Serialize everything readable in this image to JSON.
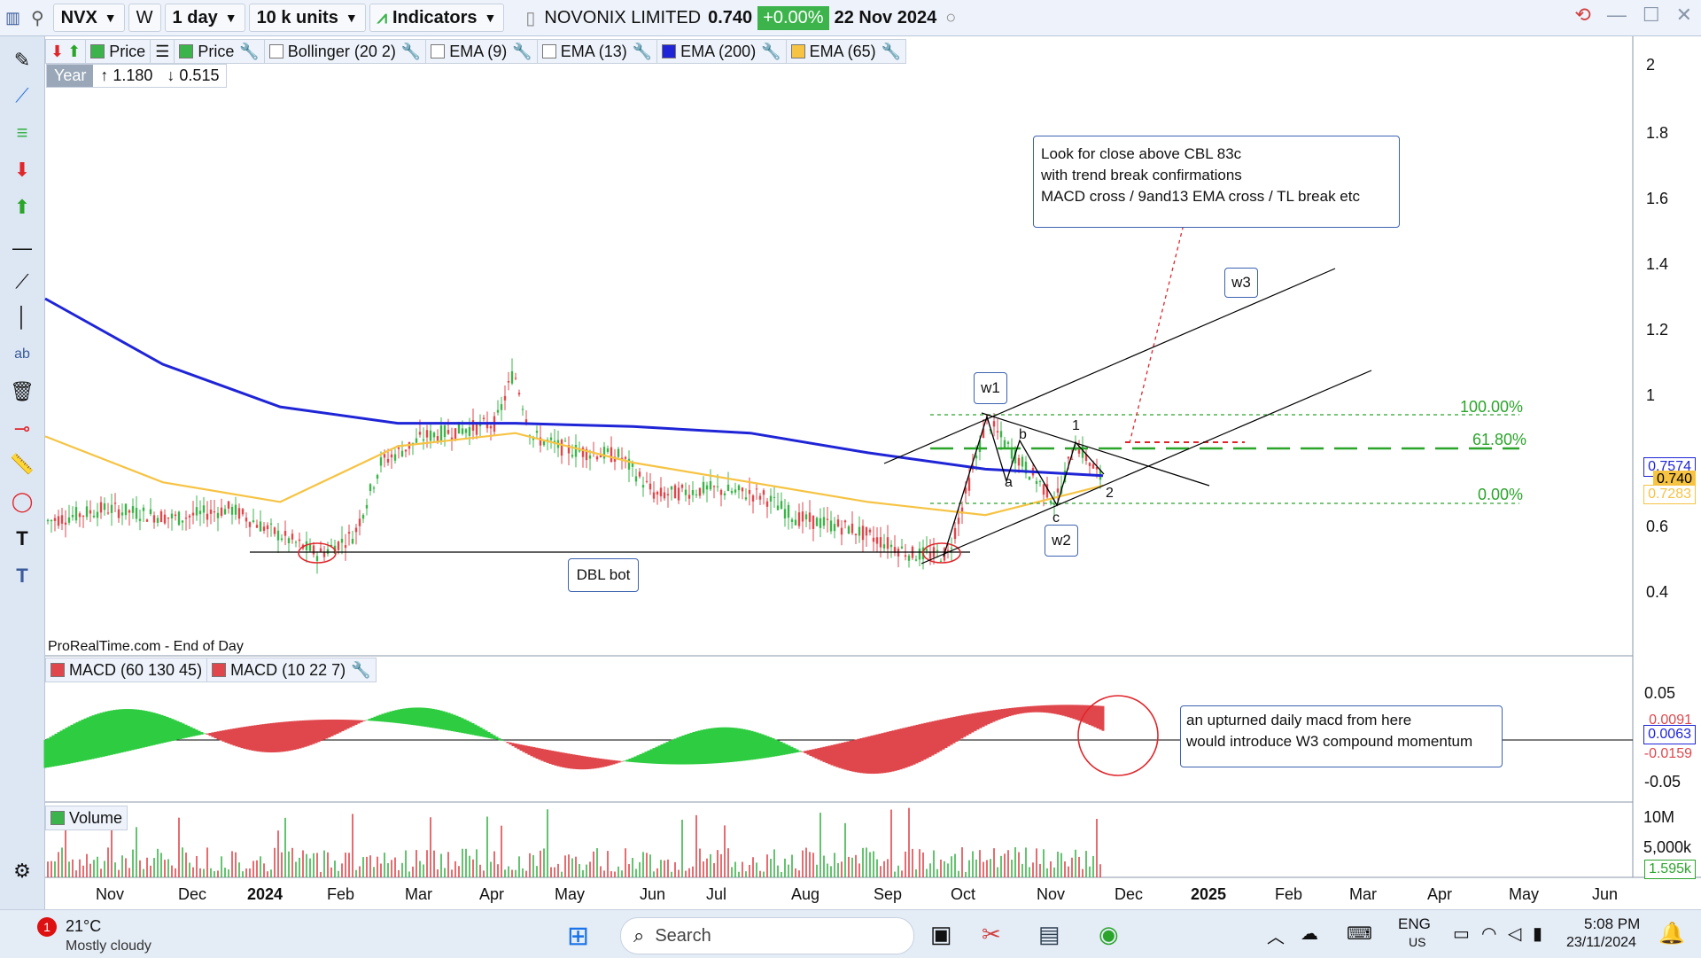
{
  "toolbar": {
    "ticker": "NVX",
    "timeframe": "1 day",
    "units": "10 k units",
    "indicators_label": "Indicators",
    "instrument_name": "NOVONIX LIMITED",
    "last_price": "0.740",
    "change": "+0.00%",
    "date": "22 Nov 2024",
    "w_label": "W"
  },
  "legend": {
    "items": [
      {
        "label": "Price",
        "color": "#3cb44b"
      },
      {
        "label": "Price",
        "color": "#3cb44b"
      },
      {
        "label": "Bollinger (20 2)",
        "color": "#ffffff"
      },
      {
        "label": "EMA (9)",
        "color": "#ffffff"
      },
      {
        "label": "EMA (13)",
        "color": "#ffffff"
      },
      {
        "label": "EMA (200)",
        "color": "#1f25d6"
      },
      {
        "label": "EMA (65)",
        "color": "#f6c343"
      }
    ]
  },
  "year_box": {
    "label": "Year",
    "high": "↑ 1.180",
    "low": "↓ 0.515"
  },
  "annotations": {
    "note_main": [
      "Look for close above CBL 83c",
      "with trend break confirmations",
      "MACD cross / 9and13 EMA cross / TL break etc"
    ],
    "w3": "w3",
    "w1": "w1",
    "w2": "w2",
    "dbl_bot": "DBL bot",
    "macd_note": [
      "an upturned daily macd from here",
      "would introduce W3 compound momentum"
    ],
    "fib_100": "100.00%",
    "fib_618": "61.80%",
    "fib_0": "0.00%",
    "wave_a": "a",
    "wave_b": "b",
    "wave_c": "c",
    "wave_1": "1",
    "wave_2": "2"
  },
  "source_label": "ProRealTime.com - End of Day",
  "price_axis": {
    "ticks": [
      "2",
      "1.8",
      "1.6",
      "1.4",
      "1.2",
      "1",
      "0.6",
      "0.4"
    ]
  },
  "price_tags": [
    {
      "text": "0.7574",
      "color": "#1f25d6"
    },
    {
      "text": "0.740",
      "color": "#3cb44b"
    },
    {
      "text": "0.7283",
      "color": "#f6c343"
    }
  ],
  "macd_panel": {
    "legend": [
      "MACD (60 130 45)",
      "MACD (10 22 7)"
    ],
    "ticks": [
      "0.05",
      "-0.05"
    ],
    "tags": [
      "0.0091",
      "0.0063",
      "-0.0159"
    ]
  },
  "volume_panel": {
    "legend": "Volume",
    "ticks": [
      "10M",
      "5,000k"
    ],
    "tag": "1.595k"
  },
  "time_axis": {
    "labels": [
      "Nov",
      "Dec",
      "2024",
      "Feb",
      "Mar",
      "Apr",
      "May",
      "Jun",
      "Jul",
      "Aug",
      "Sep",
      "Oct",
      "Nov",
      "Dec",
      "2025",
      "Feb",
      "Mar",
      "Apr",
      "May",
      "Jun"
    ]
  },
  "taskbar": {
    "weather_temp": "21°C",
    "weather_desc": "Mostly cloudy",
    "notif_count": "1",
    "search_placeholder": "Search",
    "lang": "ENG",
    "lang_sub": "US",
    "time": "5:08 PM",
    "date": "23/11/2024"
  },
  "colors": {
    "ema200": "#1f25d6",
    "ema65": "#f6c343",
    "up": "#3cb44b",
    "down": "#e0474c",
    "fib": "#2aa52a"
  },
  "chart_data": {
    "type": "line",
    "title": "NOVONIX LIMITED",
    "ylim": [
      0.25,
      2.1
    ],
    "series": [
      {
        "name": "EMA (200)",
        "values": [
          1.3,
          1.1,
          0.97,
          0.92,
          0.92,
          0.91,
          0.89,
          0.83,
          0.78,
          0.76
        ]
      },
      {
        "name": "EMA (65)",
        "values": [
          0.88,
          0.74,
          0.68,
          0.85,
          0.89,
          0.8,
          0.74,
          0.68,
          0.64,
          0.73
        ]
      }
    ],
    "annotations_lines": [
      "DBL bot",
      "w1",
      "w2",
      "w3"
    ]
  }
}
